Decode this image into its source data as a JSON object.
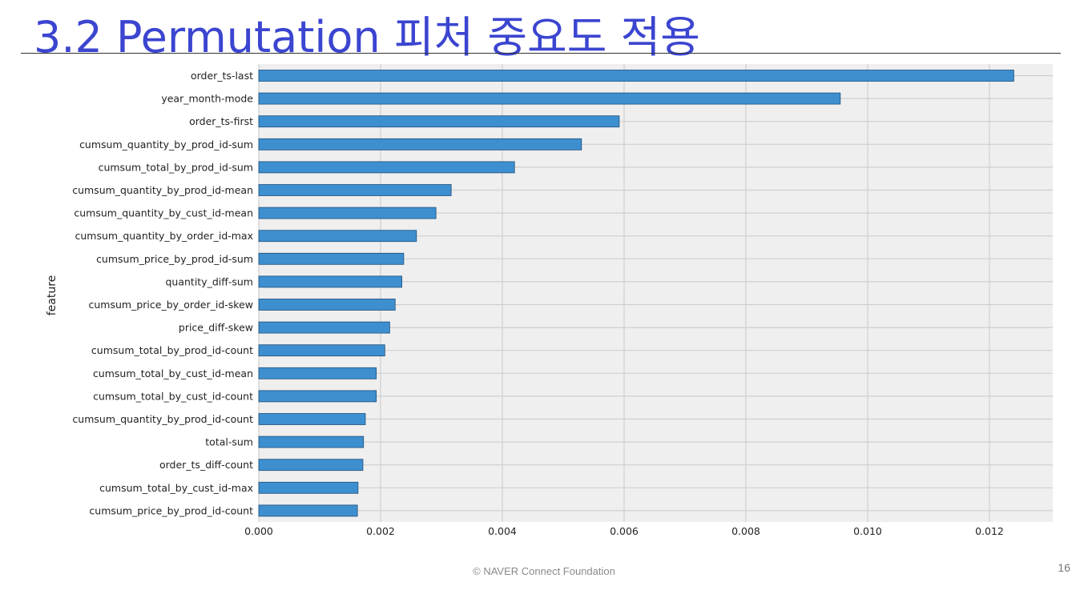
{
  "slide": {
    "title": "3.2 Permutation 피처 중요도 적용",
    "footer": "©  NAVER Connect Foundation",
    "page_number": "16"
  },
  "colors": {
    "title": "#3b45d0",
    "bar_fill": "#3e8fcf",
    "bar_stroke": "#1f4f7a",
    "plot_bg": "#efefef",
    "grid": "#cfcfcf"
  },
  "chart_data": {
    "type": "bar",
    "orientation": "horizontal",
    "ylabel": "feature",
    "xlabel": "",
    "xlim": [
      0,
      0.013
    ],
    "xticks": [
      0.0,
      0.002,
      0.004,
      0.006,
      0.008,
      0.01,
      0.012
    ],
    "xtick_labels": [
      "0.000",
      "0.002",
      "0.004",
      "0.006",
      "0.008",
      "0.010",
      "0.012"
    ],
    "grid": true,
    "categories": [
      "order_ts-last",
      "year_month-mode",
      "order_ts-first",
      "cumsum_quantity_by_prod_id-sum",
      "cumsum_total_by_prod_id-sum",
      "cumsum_quantity_by_prod_id-mean",
      "cumsum_quantity_by_cust_id-mean",
      "cumsum_quantity_by_order_id-max",
      "cumsum_price_by_prod_id-sum",
      "quantity_diff-sum",
      "cumsum_price_by_order_id-skew",
      "price_diff-skew",
      "cumsum_total_by_prod_id-count",
      "cumsum_total_by_cust_id-mean",
      "cumsum_total_by_cust_id-count",
      "cumsum_quantity_by_prod_id-count",
      "total-sum",
      "order_ts_diff-count",
      "cumsum_total_by_cust_id-max",
      "cumsum_price_by_prod_id-count"
    ],
    "values": [
      0.0124,
      0.00955,
      0.00592,
      0.0053,
      0.0042,
      0.00316,
      0.00291,
      0.00259,
      0.00238,
      0.00235,
      0.00224,
      0.00215,
      0.00207,
      0.00193,
      0.00193,
      0.00175,
      0.00172,
      0.00171,
      0.00163,
      0.00162
    ]
  }
}
